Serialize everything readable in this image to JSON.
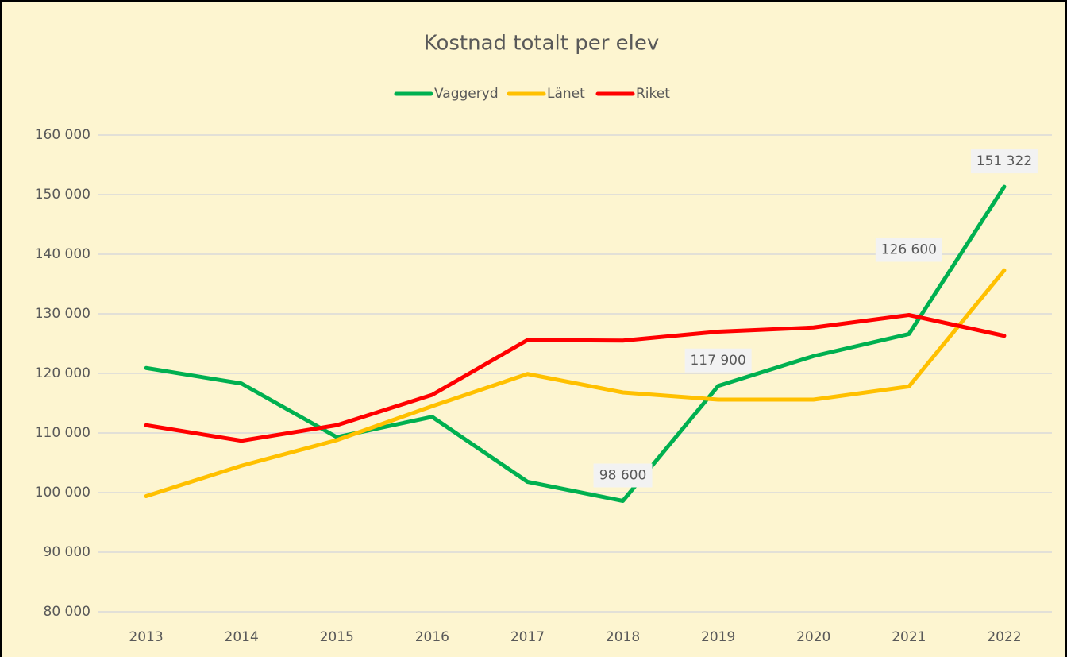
{
  "chart_data": {
    "type": "line",
    "title": "Kostnad totalt per elev",
    "categories": [
      "2013",
      "2014",
      "2015",
      "2016",
      "2017",
      "2018",
      "2019",
      "2020",
      "2021",
      "2022"
    ],
    "series": [
      {
        "name": "Vaggeryd",
        "color": "#00b050",
        "values": [
          120900,
          118300,
          109300,
          112700,
          101800,
          98600,
          117900,
          122900,
          126600,
          151322
        ],
        "value_labels": [
          null,
          null,
          null,
          null,
          null,
          "98 600",
          "117 900",
          null,
          "126 600",
          "151 322"
        ]
      },
      {
        "name": "Länet",
        "color": "#ffc000",
        "values": [
          99400,
          104500,
          108800,
          114500,
          119900,
          116800,
          115600,
          115600,
          117800,
          137300
        ]
      },
      {
        "name": "Riket",
        "color": "#ff0000",
        "values": [
          111300,
          108700,
          111300,
          116400,
          125600,
          125500,
          127000,
          127700,
          129800,
          126300
        ]
      }
    ],
    "ylim": [
      80000,
      160000
    ],
    "yticks": [
      {
        "value": 80000,
        "label": "80 000"
      },
      {
        "value": 90000,
        "label": "90 000"
      },
      {
        "value": 100000,
        "label": "100 000"
      },
      {
        "value": 110000,
        "label": "110 000"
      },
      {
        "value": 120000,
        "label": "120 000"
      },
      {
        "value": 130000,
        "label": "130 000"
      },
      {
        "value": 140000,
        "label": "140 000"
      },
      {
        "value": 150000,
        "label": "150 000"
      },
      {
        "value": 160000,
        "label": "160 000"
      }
    ],
    "grid": true,
    "legend": "top"
  }
}
